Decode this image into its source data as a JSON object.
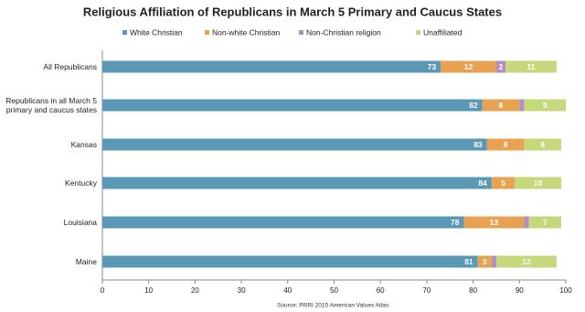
{
  "chart_data": {
    "type": "stacked-bar-horizontal",
    "title": "Religious Affiliation of Republicans in March 5 Primary and Caucus States",
    "categories": [
      "All Republicans",
      "Republicans in all March 5 primary and caucus states",
      "Kansas",
      "Kentucky",
      "Louisiana",
      "Maine"
    ],
    "series": [
      {
        "name": "White Christian",
        "color": "#5b98b5",
        "values": [
          73,
          82,
          83,
          84,
          78,
          81
        ]
      },
      {
        "name": "Non-white Christian",
        "color": "#e8a352",
        "values": [
          12,
          8,
          8,
          5,
          13,
          3
        ]
      },
      {
        "name": "Non-Christian religion",
        "color": "#b38ec2",
        "values": [
          2,
          1,
          0,
          0,
          1,
          1
        ],
        "value_labels": [
          "2",
          null,
          null,
          null,
          null,
          null
        ]
      },
      {
        "name": "Unaffiliated",
        "color": "#c5d87c",
        "values": [
          11,
          9,
          8,
          10,
          7,
          13
        ]
      }
    ],
    "xlim": [
      0,
      100
    ],
    "xticks": [
      0,
      10,
      20,
      30,
      40,
      50,
      60,
      70,
      80,
      90,
      100
    ],
    "source": "Source: PRRI 2015 American Values Atlas."
  }
}
